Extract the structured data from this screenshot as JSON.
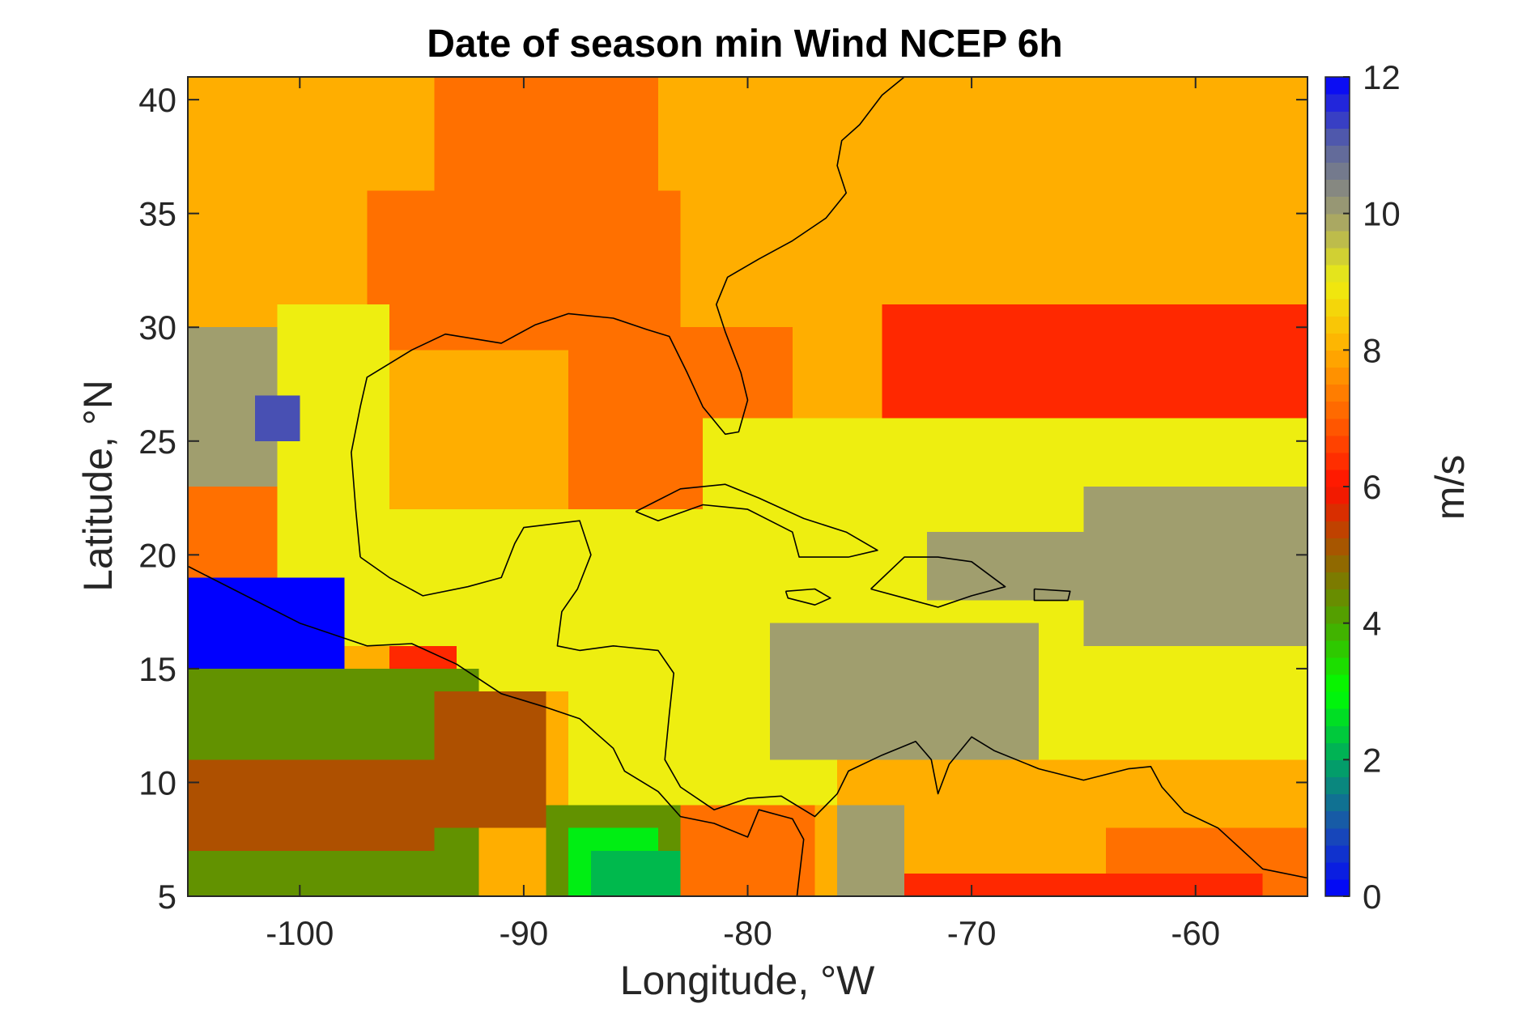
{
  "chart_data": {
    "type": "heatmap",
    "title": "Date of season min Wind NCEP 6h",
    "xlabel": "Longitude, °W",
    "ylabel": "Latitude, °N",
    "colorbar_label": "m/s",
    "xlim": [
      -105,
      -55
    ],
    "ylim": [
      5,
      41
    ],
    "clim": [
      0,
      12
    ],
    "x_ticks": [
      -100,
      -90,
      -80,
      -70,
      -60
    ],
    "x_tick_labels": [
      "-100",
      "-90",
      "-80",
      "-70",
      "-60"
    ],
    "y_ticks": [
      5,
      10,
      15,
      20,
      25,
      30,
      35,
      40
    ],
    "y_tick_labels": [
      "5",
      "10",
      "15",
      "20",
      "25",
      "30",
      "35",
      "40"
    ],
    "colorbar_ticks": [
      0,
      2,
      4,
      6,
      8,
      10,
      12
    ],
    "colorbar_tick_labels": [
      "0",
      "2",
      "4",
      "6",
      "8",
      "10",
      "12"
    ],
    "colormap": [
      [
        0,
        "#0000ff"
      ],
      [
        1,
        "#1a50b0"
      ],
      [
        2,
        "#00a860"
      ],
      [
        3,
        "#00ff00"
      ],
      [
        4,
        "#4aa800"
      ],
      [
        5,
        "#9a6000"
      ],
      [
        6,
        "#ff1000"
      ],
      [
        7,
        "#ff6000"
      ],
      [
        8,
        "#ffae00"
      ],
      [
        9,
        "#eeee10"
      ],
      [
        10,
        "#a09e6e"
      ],
      [
        11,
        "#5a64a0"
      ],
      [
        12,
        "#0000ff"
      ]
    ],
    "cell_size_deg": 1.0,
    "approximate_regions": [
      {
        "lon": [
          -105,
          -55
        ],
        "lat": [
          5,
          41
        ],
        "value": 8
      },
      {
        "lon": [
          -94,
          -84
        ],
        "lat": [
          33,
          41
        ],
        "value": 7.2
      },
      {
        "lon": [
          -97,
          -83
        ],
        "lat": [
          29,
          36
        ],
        "value": 7.2
      },
      {
        "lon": [
          -88,
          -78
        ],
        "lat": [
          22,
          30
        ],
        "value": 7.2
      },
      {
        "lon": [
          -74,
          -55
        ],
        "lat": [
          26,
          31
        ],
        "value": 6.3
      },
      {
        "lon": [
          -73,
          -55
        ],
        "lat": [
          24,
          27
        ],
        "value": 6.3
      },
      {
        "lon": [
          -105,
          -98
        ],
        "lat": [
          19,
          23
        ],
        "value": 7.2
      },
      {
        "lon": [
          -101,
          -96
        ],
        "lat": [
          18,
          31
        ],
        "value": 9
      },
      {
        "lon": [
          -99,
          -93
        ],
        "lat": [
          16,
          22
        ],
        "value": 9
      },
      {
        "lon": [
          -94,
          -78
        ],
        "lat": [
          14,
          22
        ],
        "value": 9
      },
      {
        "lon": [
          -82,
          -55
        ],
        "lat": [
          11,
          26
        ],
        "value": 9
      },
      {
        "lon": [
          -88,
          -76
        ],
        "lat": [
          9,
          14
        ],
        "value": 9
      },
      {
        "lon": [
          -105,
          -101
        ],
        "lat": [
          23,
          30
        ],
        "value": 10
      },
      {
        "lon": [
          -102,
          -100
        ],
        "lat": [
          25,
          27
        ],
        "value": 11.2
      },
      {
        "lon": [
          -79,
          -67
        ],
        "lat": [
          11,
          17
        ],
        "value": 10
      },
      {
        "lon": [
          -72,
          -63
        ],
        "lat": [
          18,
          21
        ],
        "value": 10
      },
      {
        "lon": [
          -65,
          -55
        ],
        "lat": [
          16,
          23
        ],
        "value": 10
      },
      {
        "lon": [
          -76,
          -73
        ],
        "lat": [
          5,
          9
        ],
        "value": 10
      },
      {
        "lon": [
          -105,
          -98
        ],
        "lat": [
          15,
          19
        ],
        "value": 0
      },
      {
        "lon": [
          -96,
          -93
        ],
        "lat": [
          14,
          16
        ],
        "value": 6.3
      },
      {
        "lon": [
          -105,
          -92
        ],
        "lat": [
          5,
          15
        ],
        "value": 4.3
      },
      {
        "lon": [
          -105,
          -94
        ],
        "lat": [
          7,
          11
        ],
        "value": 5.2
      },
      {
        "lon": [
          -94,
          -89
        ],
        "lat": [
          8,
          14
        ],
        "value": 5.2
      },
      {
        "lon": [
          -89,
          -82
        ],
        "lat": [
          5,
          9
        ],
        "value": 4.3
      },
      {
        "lon": [
          -88,
          -84
        ],
        "lat": [
          5,
          8
        ],
        "value": 2.8
      },
      {
        "lon": [
          -87,
          -83
        ],
        "lat": [
          5,
          7
        ],
        "value": 2.2
      },
      {
        "lon": [
          -83,
          -77
        ],
        "lat": [
          5,
          9
        ],
        "value": 7.2
      },
      {
        "lon": [
          -73,
          -55
        ],
        "lat": [
          5,
          11
        ],
        "value": 8
      },
      {
        "lon": [
          -64,
          -55
        ],
        "lat": [
          5,
          8
        ],
        "value": 7.2
      },
      {
        "lon": [
          -73,
          -57
        ],
        "lat": [
          5,
          6
        ],
        "value": 6.3
      }
    ]
  }
}
